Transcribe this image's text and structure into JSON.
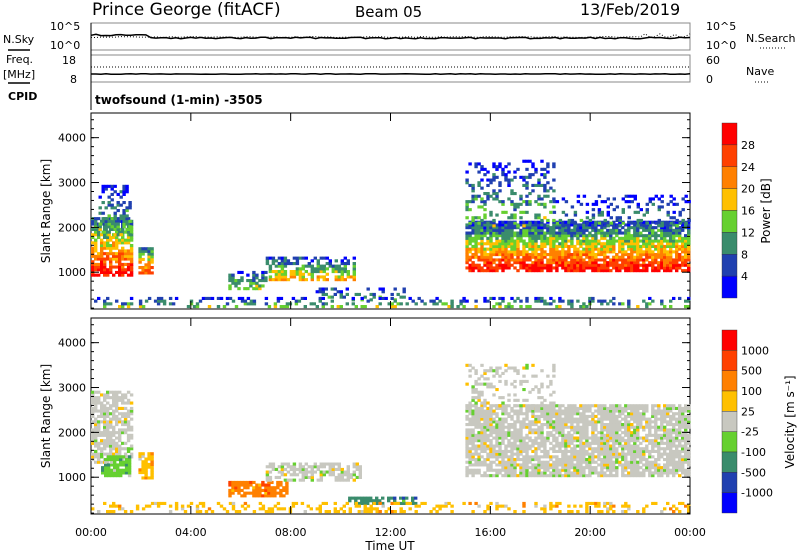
{
  "header": {
    "station": "Prince George (fitACF)",
    "beam": "Beam 05",
    "date": "13/Feb/2019",
    "cpid": "twofsound (1-min) -3505"
  },
  "side_labels": {
    "nsky": "N.Sky",
    "freq1": "Freq.",
    "freq2": "[MHz]",
    "cpid": "CPID",
    "nsearch": "N.Search",
    "nave": "Nave"
  },
  "noise_axis": {
    "left_ticks": [
      "10^5",
      "10^0"
    ],
    "right_ticks": [
      "10^5",
      "10^0"
    ]
  },
  "freq_axis": {
    "left_ticks": [
      "18",
      "8"
    ],
    "right_ticks": [
      "60",
      "0"
    ]
  },
  "chart_data": [
    {
      "type": "heatmap",
      "name": "power",
      "ylabel": "Slant Range [km]",
      "xlabel": "Time UT",
      "xlim": [
        0,
        24
      ],
      "ylim": [
        180,
        4550
      ],
      "xticks": [
        "00:00",
        "04:00",
        "08:00",
        "12:00",
        "16:00",
        "20:00",
        "00:00"
      ],
      "yticks": [
        1000,
        2000,
        3000,
        4000
      ],
      "colorbar": {
        "label": "Power [dB]",
        "ticks": [
          "28",
          "24",
          "20",
          "16",
          "12",
          "8",
          "4"
        ],
        "colors": [
          "#0000ff",
          "#2040b0",
          "#3a8c6c",
          "#66d030",
          "#ffc000",
          "#ff8000",
          "#ff4000",
          "#ff0000"
        ]
      },
      "regions": [
        {
          "t": [
            0,
            1.6
          ],
          "r": [
            900,
            2200
          ],
          "p": [
            30,
            6
          ],
          "d": 0.8
        },
        {
          "t": [
            0.3,
            1.6
          ],
          "r": [
            1800,
            2900
          ],
          "p": [
            14,
            3
          ],
          "d": 0.45
        },
        {
          "t": [
            1.9,
            2.5
          ],
          "r": [
            950,
            1500
          ],
          "p": [
            26,
            8
          ],
          "d": 0.8
        },
        {
          "t": [
            5.5,
            7.0
          ],
          "r": [
            600,
            1000
          ],
          "p": [
            14,
            4
          ],
          "d": 0.6
        },
        {
          "t": [
            7.0,
            10.5
          ],
          "r": [
            800,
            1300
          ],
          "p": [
            20,
            4
          ],
          "d": 0.6
        },
        {
          "t": [
            9.0,
            12.5
          ],
          "r": [
            350,
            650
          ],
          "p": [
            12,
            3
          ],
          "d": 0.35
        },
        {
          "t": [
            15.0,
            24
          ],
          "r": [
            1000,
            2100
          ],
          "p": [
            30,
            4
          ],
          "d": 0.85
        },
        {
          "t": [
            15.0,
            18.5
          ],
          "r": [
            2000,
            3500
          ],
          "p": [
            14,
            2
          ],
          "d": 0.3
        },
        {
          "t": [
            18.5,
            24
          ],
          "r": [
            2000,
            2700
          ],
          "p": [
            10,
            2
          ],
          "d": 0.25
        },
        {
          "t": [
            0,
            24
          ],
          "r": [
            200,
            420
          ],
          "p": [
            14,
            2
          ],
          "d": 0.3
        }
      ]
    },
    {
      "type": "heatmap",
      "name": "velocity",
      "ylabel": "Slant Range [km]",
      "xlabel": "Time UT",
      "xlim": [
        0,
        24
      ],
      "ylim": [
        180,
        4550
      ],
      "xticks": [
        "00:00",
        "04:00",
        "08:00",
        "12:00",
        "16:00",
        "20:00",
        "00:00"
      ],
      "yticks": [
        1000,
        2000,
        3000,
        4000
      ],
      "colorbar": {
        "label": "Velocity [m s⁻¹]",
        "ticks": [
          "1000",
          "500",
          "100",
          "25",
          "-25",
          "-100",
          "-500",
          "-1000"
        ],
        "colors": [
          "#0000ff",
          "#2040b0",
          "#3a8c6c",
          "#66d030",
          "#c8c8c0",
          "#ffc000",
          "#ff8000",
          "#ff4000",
          "#ff0000"
        ]
      },
      "regions": [
        {
          "t": [
            0,
            1.6
          ],
          "r": [
            1300,
            2900
          ],
          "v": 4,
          "d": 0.7
        },
        {
          "t": [
            0.4,
            1.6
          ],
          "r": [
            1000,
            1450
          ],
          "v": 3,
          "d": 0.8
        },
        {
          "t": [
            1.9,
            2.5
          ],
          "r": [
            950,
            1500
          ],
          "v": 5,
          "d": 0.8
        },
        {
          "t": [
            5.5,
            7.8
          ],
          "r": [
            550,
            900
          ],
          "v": 6,
          "d": 0.7
        },
        {
          "t": [
            7.0,
            10.8
          ],
          "r": [
            900,
            1300
          ],
          "v": 4,
          "d": 0.6
        },
        {
          "t": [
            10.3,
            13.0
          ],
          "r": [
            380,
            550
          ],
          "v": 2,
          "d": 0.6
        },
        {
          "t": [
            15.0,
            24
          ],
          "r": [
            1000,
            2600
          ],
          "v": 4,
          "d": 0.8
        },
        {
          "t": [
            15.0,
            18.5
          ],
          "r": [
            2500,
            3500
          ],
          "v": 4,
          "d": 0.25
        },
        {
          "t": [
            0,
            24
          ],
          "r": [
            200,
            420
          ],
          "v": 5,
          "d": 0.3
        }
      ]
    }
  ]
}
